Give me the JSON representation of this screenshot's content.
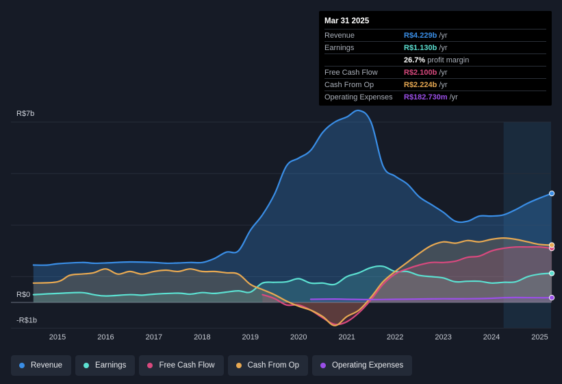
{
  "tooltip": {
    "date": "Mar 31 2025",
    "rows": [
      {
        "label": "Revenue",
        "value": "R$4.229b",
        "unit": "/yr",
        "color": "#3a8ee6"
      },
      {
        "label": "Earnings",
        "value": "R$1.130b",
        "unit": "/yr",
        "color": "#5ce0d1"
      },
      {
        "label": "",
        "value": "26.7%",
        "unit": "profit margin",
        "color": "#ffffff"
      },
      {
        "label": "Free Cash Flow",
        "value": "R$2.100b",
        "unit": "/yr",
        "color": "#d9497e"
      },
      {
        "label": "Cash From Op",
        "value": "R$2.224b",
        "unit": "/yr",
        "color": "#e8a952"
      },
      {
        "label": "Operating Expenses",
        "value": "R$182.730m",
        "unit": "/yr",
        "color": "#9b4fe8"
      }
    ]
  },
  "legend": [
    {
      "label": "Revenue",
      "color": "#3a8ee6"
    },
    {
      "label": "Earnings",
      "color": "#5ce0d1"
    },
    {
      "label": "Free Cash Flow",
      "color": "#d9497e"
    },
    {
      "label": "Cash From Op",
      "color": "#e8a952"
    },
    {
      "label": "Operating Expenses",
      "color": "#9b4fe8"
    }
  ],
  "chart_data": {
    "type": "area",
    "title": "",
    "unit": "R$ billions",
    "ylim": [
      -1,
      7
    ],
    "y_tick_labels": [
      {
        "value": 7,
        "label": "R$7b"
      },
      {
        "value": 0,
        "label": "R$0"
      },
      {
        "value": -1,
        "label": "-R$1b"
      }
    ],
    "x_tick_labels": [
      "2015",
      "2016",
      "2017",
      "2018",
      "2019",
      "2020",
      "2021",
      "2022",
      "2023",
      "2024",
      "2025"
    ],
    "forecast_shade_start": 2024.25,
    "series": [
      {
        "name": "Revenue",
        "color": "#3a8ee6",
        "x": [
          2014.5,
          2014.8,
          2015.0,
          2015.5,
          2015.75,
          2016.0,
          2016.5,
          2017.0,
          2017.25,
          2017.5,
          2017.75,
          2018.0,
          2018.25,
          2018.5,
          2018.75,
          2019.0,
          2019.25,
          2019.5,
          2019.75,
          2020.0,
          2020.25,
          2020.5,
          2020.75,
          2021.0,
          2021.25,
          2021.5,
          2021.75,
          2022.0,
          2022.25,
          2022.5,
          2022.75,
          2023.0,
          2023.25,
          2023.5,
          2023.75,
          2024.0,
          2024.25,
          2024.5,
          2024.75,
          2025.0,
          2025.25
        ],
        "values": [
          1.45,
          1.45,
          1.5,
          1.55,
          1.52,
          1.53,
          1.57,
          1.55,
          1.52,
          1.53,
          1.55,
          1.55,
          1.7,
          1.95,
          2.0,
          2.8,
          3.4,
          4.2,
          5.3,
          5.6,
          5.9,
          6.6,
          7.0,
          7.2,
          7.45,
          7.0,
          5.3,
          4.9,
          4.6,
          4.1,
          3.8,
          3.5,
          3.15,
          3.15,
          3.35,
          3.35,
          3.4,
          3.6,
          3.85,
          4.05,
          4.229
        ]
      },
      {
        "name": "Earnings",
        "color": "#5ce0d1",
        "x": [
          2014.5,
          2015.0,
          2015.5,
          2015.75,
          2016.0,
          2016.5,
          2016.75,
          2017.0,
          2017.5,
          2017.75,
          2018.0,
          2018.25,
          2018.5,
          2018.75,
          2019.0,
          2019.25,
          2019.5,
          2019.75,
          2020.0,
          2020.25,
          2020.5,
          2020.75,
          2021.0,
          2021.25,
          2021.5,
          2021.75,
          2022.0,
          2022.25,
          2022.5,
          2022.75,
          2023.0,
          2023.25,
          2023.5,
          2023.75,
          2024.0,
          2024.25,
          2024.5,
          2024.75,
          2025.0,
          2025.25
        ],
        "values": [
          0.3,
          0.35,
          0.38,
          0.3,
          0.25,
          0.3,
          0.28,
          0.32,
          0.36,
          0.32,
          0.38,
          0.35,
          0.4,
          0.45,
          0.4,
          0.75,
          0.78,
          0.8,
          0.92,
          0.75,
          0.75,
          0.7,
          1.0,
          1.15,
          1.35,
          1.4,
          1.2,
          1.2,
          1.05,
          1.0,
          0.95,
          0.8,
          0.82,
          0.82,
          0.75,
          0.78,
          0.8,
          1.0,
          1.1,
          1.13
        ]
      },
      {
        "name": "Free Cash Flow",
        "color": "#d9497e",
        "x": [
          2019.25,
          2019.5,
          2019.75,
          2020.0,
          2020.25,
          2020.5,
          2020.75,
          2021.0,
          2021.25,
          2021.5,
          2021.75,
          2022.0,
          2022.25,
          2022.5,
          2022.75,
          2023.0,
          2023.25,
          2023.5,
          2023.75,
          2024.0,
          2024.25,
          2024.5,
          2024.75,
          2025.0,
          2025.25
        ],
        "values": [
          0.3,
          0.15,
          -0.1,
          -0.1,
          -0.3,
          -0.6,
          -0.85,
          -0.75,
          -0.4,
          0.1,
          0.7,
          1.1,
          1.3,
          1.45,
          1.55,
          1.55,
          1.6,
          1.75,
          1.8,
          2.0,
          2.1,
          2.15,
          2.15,
          2.15,
          2.1
        ]
      },
      {
        "name": "Cash From Op",
        "color": "#e8a952",
        "x": [
          2014.5,
          2015.0,
          2015.25,
          2015.5,
          2015.75,
          2016.0,
          2016.25,
          2016.5,
          2016.75,
          2017.0,
          2017.25,
          2017.5,
          2017.75,
          2018.0,
          2018.25,
          2018.5,
          2018.75,
          2019.0,
          2019.25,
          2019.5,
          2019.75,
          2020.0,
          2020.25,
          2020.5,
          2020.75,
          2021.0,
          2021.25,
          2021.5,
          2021.75,
          2022.0,
          2022.25,
          2022.5,
          2022.75,
          2023.0,
          2023.25,
          2023.5,
          2023.75,
          2024.0,
          2024.25,
          2024.5,
          2024.75,
          2025.0,
          2025.25
        ],
        "values": [
          0.75,
          0.8,
          1.05,
          1.1,
          1.15,
          1.3,
          1.1,
          1.2,
          1.1,
          1.2,
          1.25,
          1.2,
          1.3,
          1.2,
          1.2,
          1.15,
          1.1,
          0.7,
          0.5,
          0.3,
          0.05,
          -0.15,
          -0.3,
          -0.55,
          -0.9,
          -0.55,
          -0.3,
          0.2,
          0.8,
          1.2,
          1.55,
          1.9,
          2.2,
          2.35,
          2.3,
          2.4,
          2.35,
          2.45,
          2.5,
          2.45,
          2.35,
          2.25,
          2.224
        ]
      },
      {
        "name": "Operating Expenses",
        "color": "#9b4fe8",
        "x": [
          2020.25,
          2020.75,
          2021.0,
          2021.5,
          2022.0,
          2022.5,
          2023.0,
          2023.5,
          2024.0,
          2024.25,
          2024.5,
          2025.0,
          2025.25
        ],
        "values": [
          0.12,
          0.13,
          0.12,
          0.11,
          0.12,
          0.13,
          0.14,
          0.14,
          0.16,
          0.18,
          0.19,
          0.18,
          0.183
        ]
      }
    ]
  }
}
